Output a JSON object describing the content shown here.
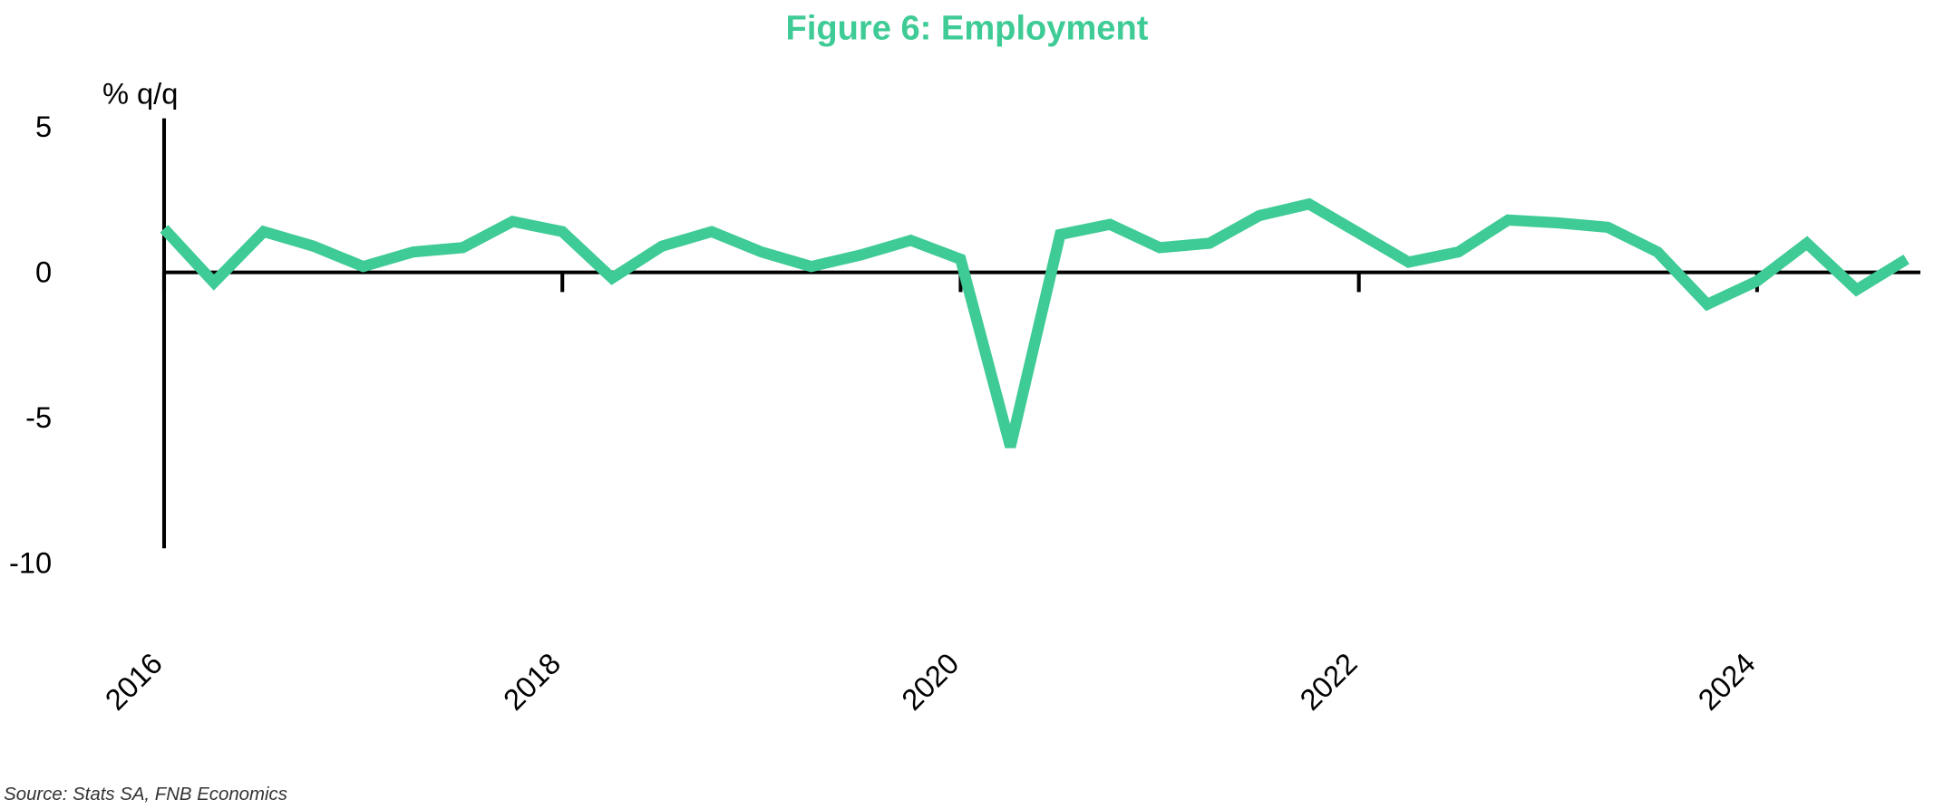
{
  "chart_data": {
    "type": "line",
    "title": "Figure 6: Employment",
    "y_label": "% q/q",
    "source": "Source: Stats SA, FNB Economics",
    "x": [
      2016,
      2016.25,
      2016.5,
      2016.75,
      2017,
      2017.25,
      2017.5,
      2017.75,
      2018,
      2018.25,
      2018.5,
      2018.75,
      2019,
      2019.25,
      2019.5,
      2019.75,
      2020,
      2020.25,
      2020.5,
      2020.75,
      2021,
      2021.25,
      2021.5,
      2021.75,
      2022,
      2022.25,
      2022.5,
      2022.75,
      2023,
      2023.25,
      2023.5,
      2023.75,
      2024,
      2024.25,
      2024.5,
      2024.75
    ],
    "series": [
      {
        "name": "Employment",
        "color": "#3ecb95",
        "values": [
          1.5,
          -0.35,
          1.4,
          0.9,
          0.2,
          0.7,
          0.85,
          1.75,
          1.4,
          -0.2,
          0.9,
          1.4,
          0.7,
          0.2,
          0.6,
          1.1,
          0.45,
          -6.0,
          1.3,
          1.65,
          0.85,
          1.0,
          1.95,
          2.35,
          1.35,
          0.35,
          0.7,
          1.8,
          1.7,
          1.55,
          0.7,
          -1.1,
          -0.3,
          1.0,
          -0.6,
          0.45
        ]
      }
    ],
    "xlim": [
      2016,
      2024.82
    ],
    "xticks": [
      2016,
      2018,
      2020,
      2022,
      2024
    ],
    "ylim": [
      -10,
      5
    ],
    "yticks": [
      -10,
      -5,
      0,
      5
    ]
  }
}
